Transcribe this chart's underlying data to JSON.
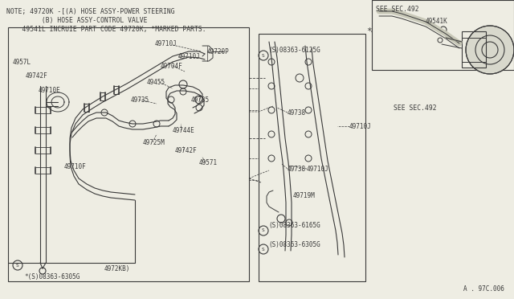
{
  "bg_color": "#eeede3",
  "line_color": "#3a3a3a",
  "note_lines": [
    "NOTE; 49720K -[(A) HOSE ASSY-POWER STEERING",
    "         (B) HOSE ASSY-CONTROL VALVE",
    "    49541L INCRUIE PART CODE 49720K, *MARKED PARTS."
  ],
  "watermark": "A . 97C.006",
  "font_size_label": 5.5,
  "font_size_note": 5.8
}
